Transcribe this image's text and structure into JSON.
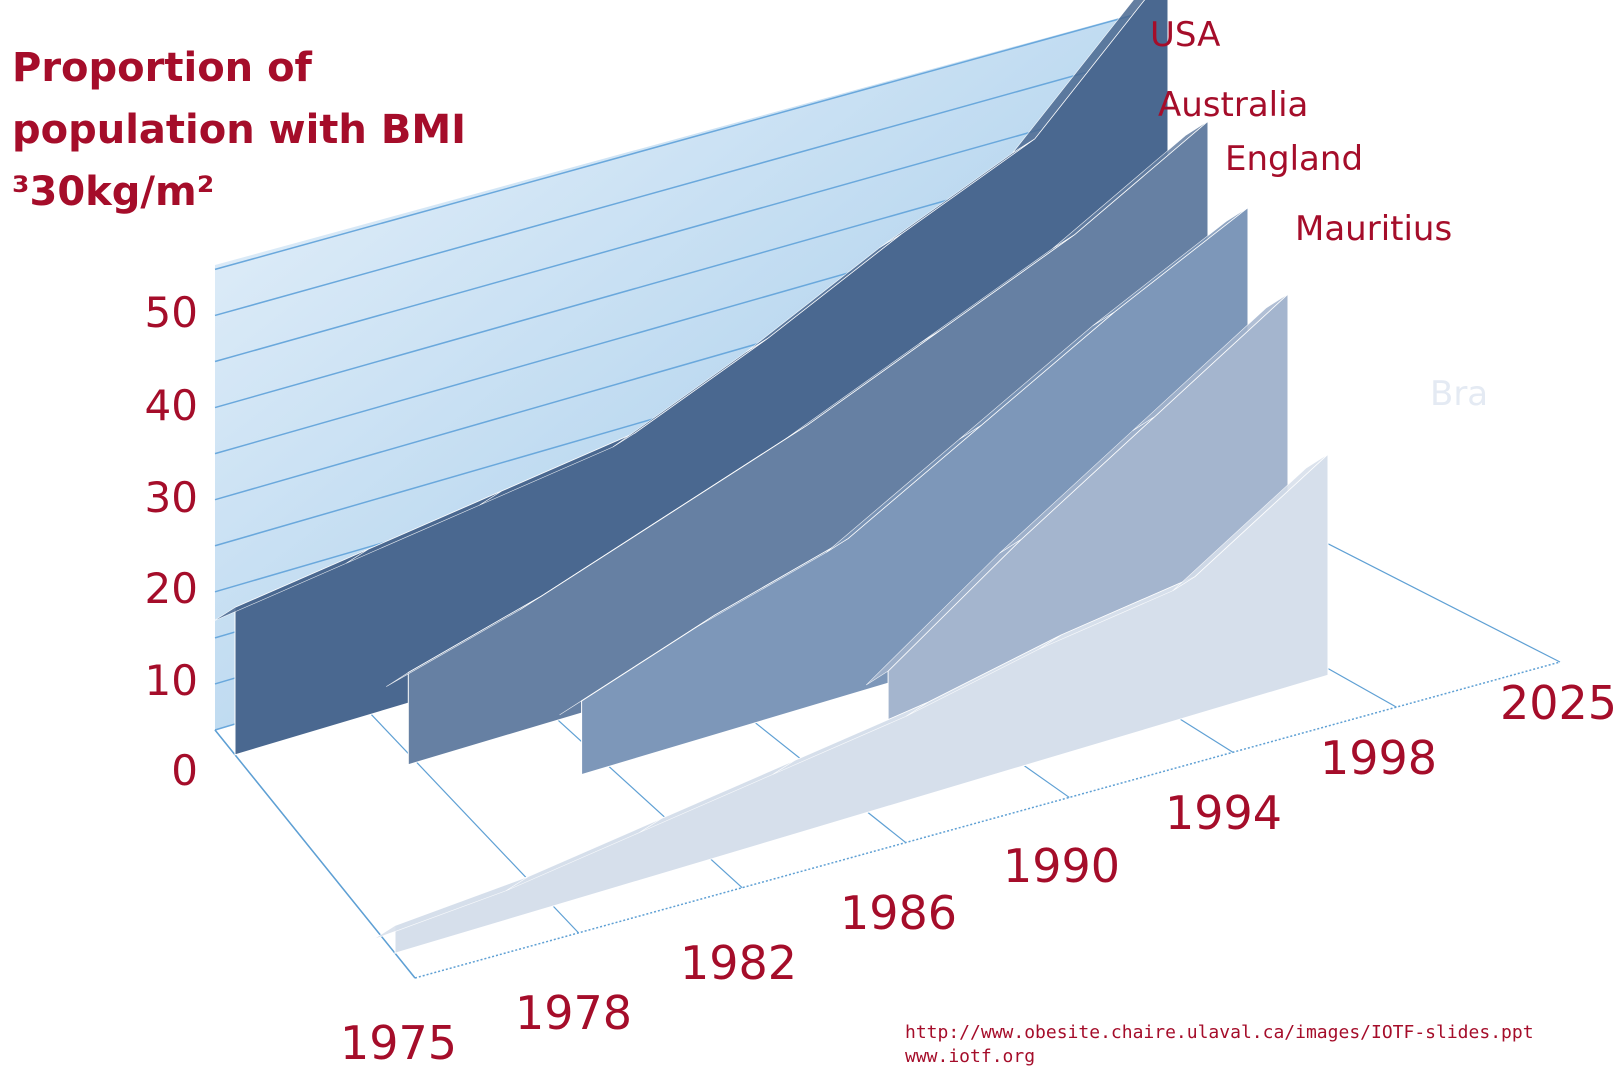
{
  "chart_data": {
    "type": "area",
    "title": [
      "Proportion of",
      "population with BMI",
      "³30kg/m²"
    ],
    "xlabel": "",
    "ylabel": "",
    "x": [
      "1975",
      "1978",
      "1982",
      "1986",
      "1990",
      "1994",
      "1998",
      "2025"
    ],
    "ylim": [
      0,
      50
    ],
    "yticks": [
      "0",
      "10",
      "20",
      "30",
      "40",
      "50"
    ],
    "grid": true,
    "three_d": true,
    "series": [
      {
        "name": "USA",
        "values": [
          16,
          18,
          20,
          22,
          28,
          35,
          41,
          55
        ]
      },
      {
        "name": "Australia",
        "values": [
          null,
          10,
          14,
          19,
          24,
          30,
          36,
          44
        ]
      },
      {
        "name": "England",
        "values": [
          null,
          null,
          8,
          13,
          17,
          25,
          33,
          40
        ]
      },
      {
        "name": "Mauritius",
        "values": [
          null,
          null,
          null,
          null,
          8,
          18,
          27,
          36
        ]
      },
      {
        "name": "Bra",
        "values": [
          3,
          4,
          6,
          8,
          10,
          13,
          15,
          24
        ]
      }
    ],
    "colors": [
      "#4a6890",
      "#6680a3",
      "#7d97b9",
      "#a4b5ce",
      "#d6dfeb"
    ]
  },
  "source": {
    "url": "http://www.obesite.chaire.ulaval.ca/images/IOTF-slides.ppt",
    "site": "www.iotf.org"
  }
}
